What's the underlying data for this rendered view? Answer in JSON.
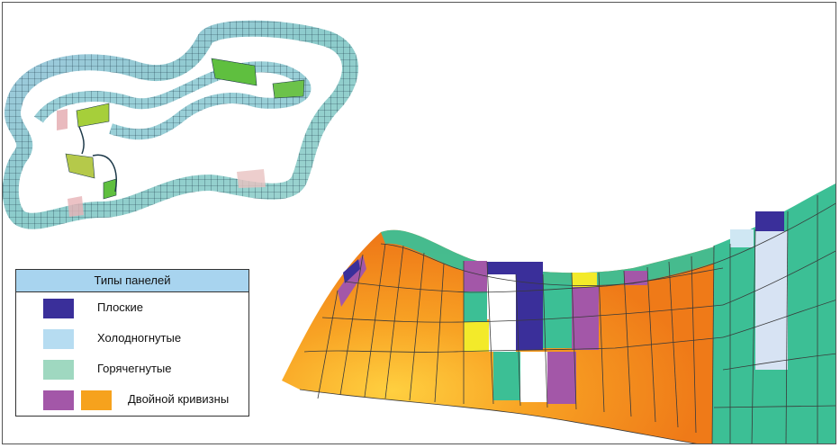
{
  "legend": {
    "title": "Типы панелей",
    "items": [
      {
        "label": "Плоские",
        "colors": [
          "#3a2f9a"
        ]
      },
      {
        "label": "Холодногнутые",
        "colors": [
          "#b6dcf1"
        ]
      },
      {
        "label": "Горячегнутые",
        "colors": [
          "#9fd8c0"
        ]
      },
      {
        "label": "Двойной кривизны",
        "colors": [
          "#a357a8",
          "#f6a21d"
        ]
      }
    ]
  },
  "colors": {
    "flat": "#3a2f9a",
    "cold_bent": "#b6dcf1",
    "hot_bent": "#3cbf95",
    "double_curvature_purple": "#a357a8",
    "double_curvature_orange": "#f6a21d",
    "yellow": "#f3ea2a",
    "ribbon_blue": "#8fbfd8",
    "ribbon_teal": "#8fd2c6",
    "ribbon_green": "#5fbf3f"
  }
}
